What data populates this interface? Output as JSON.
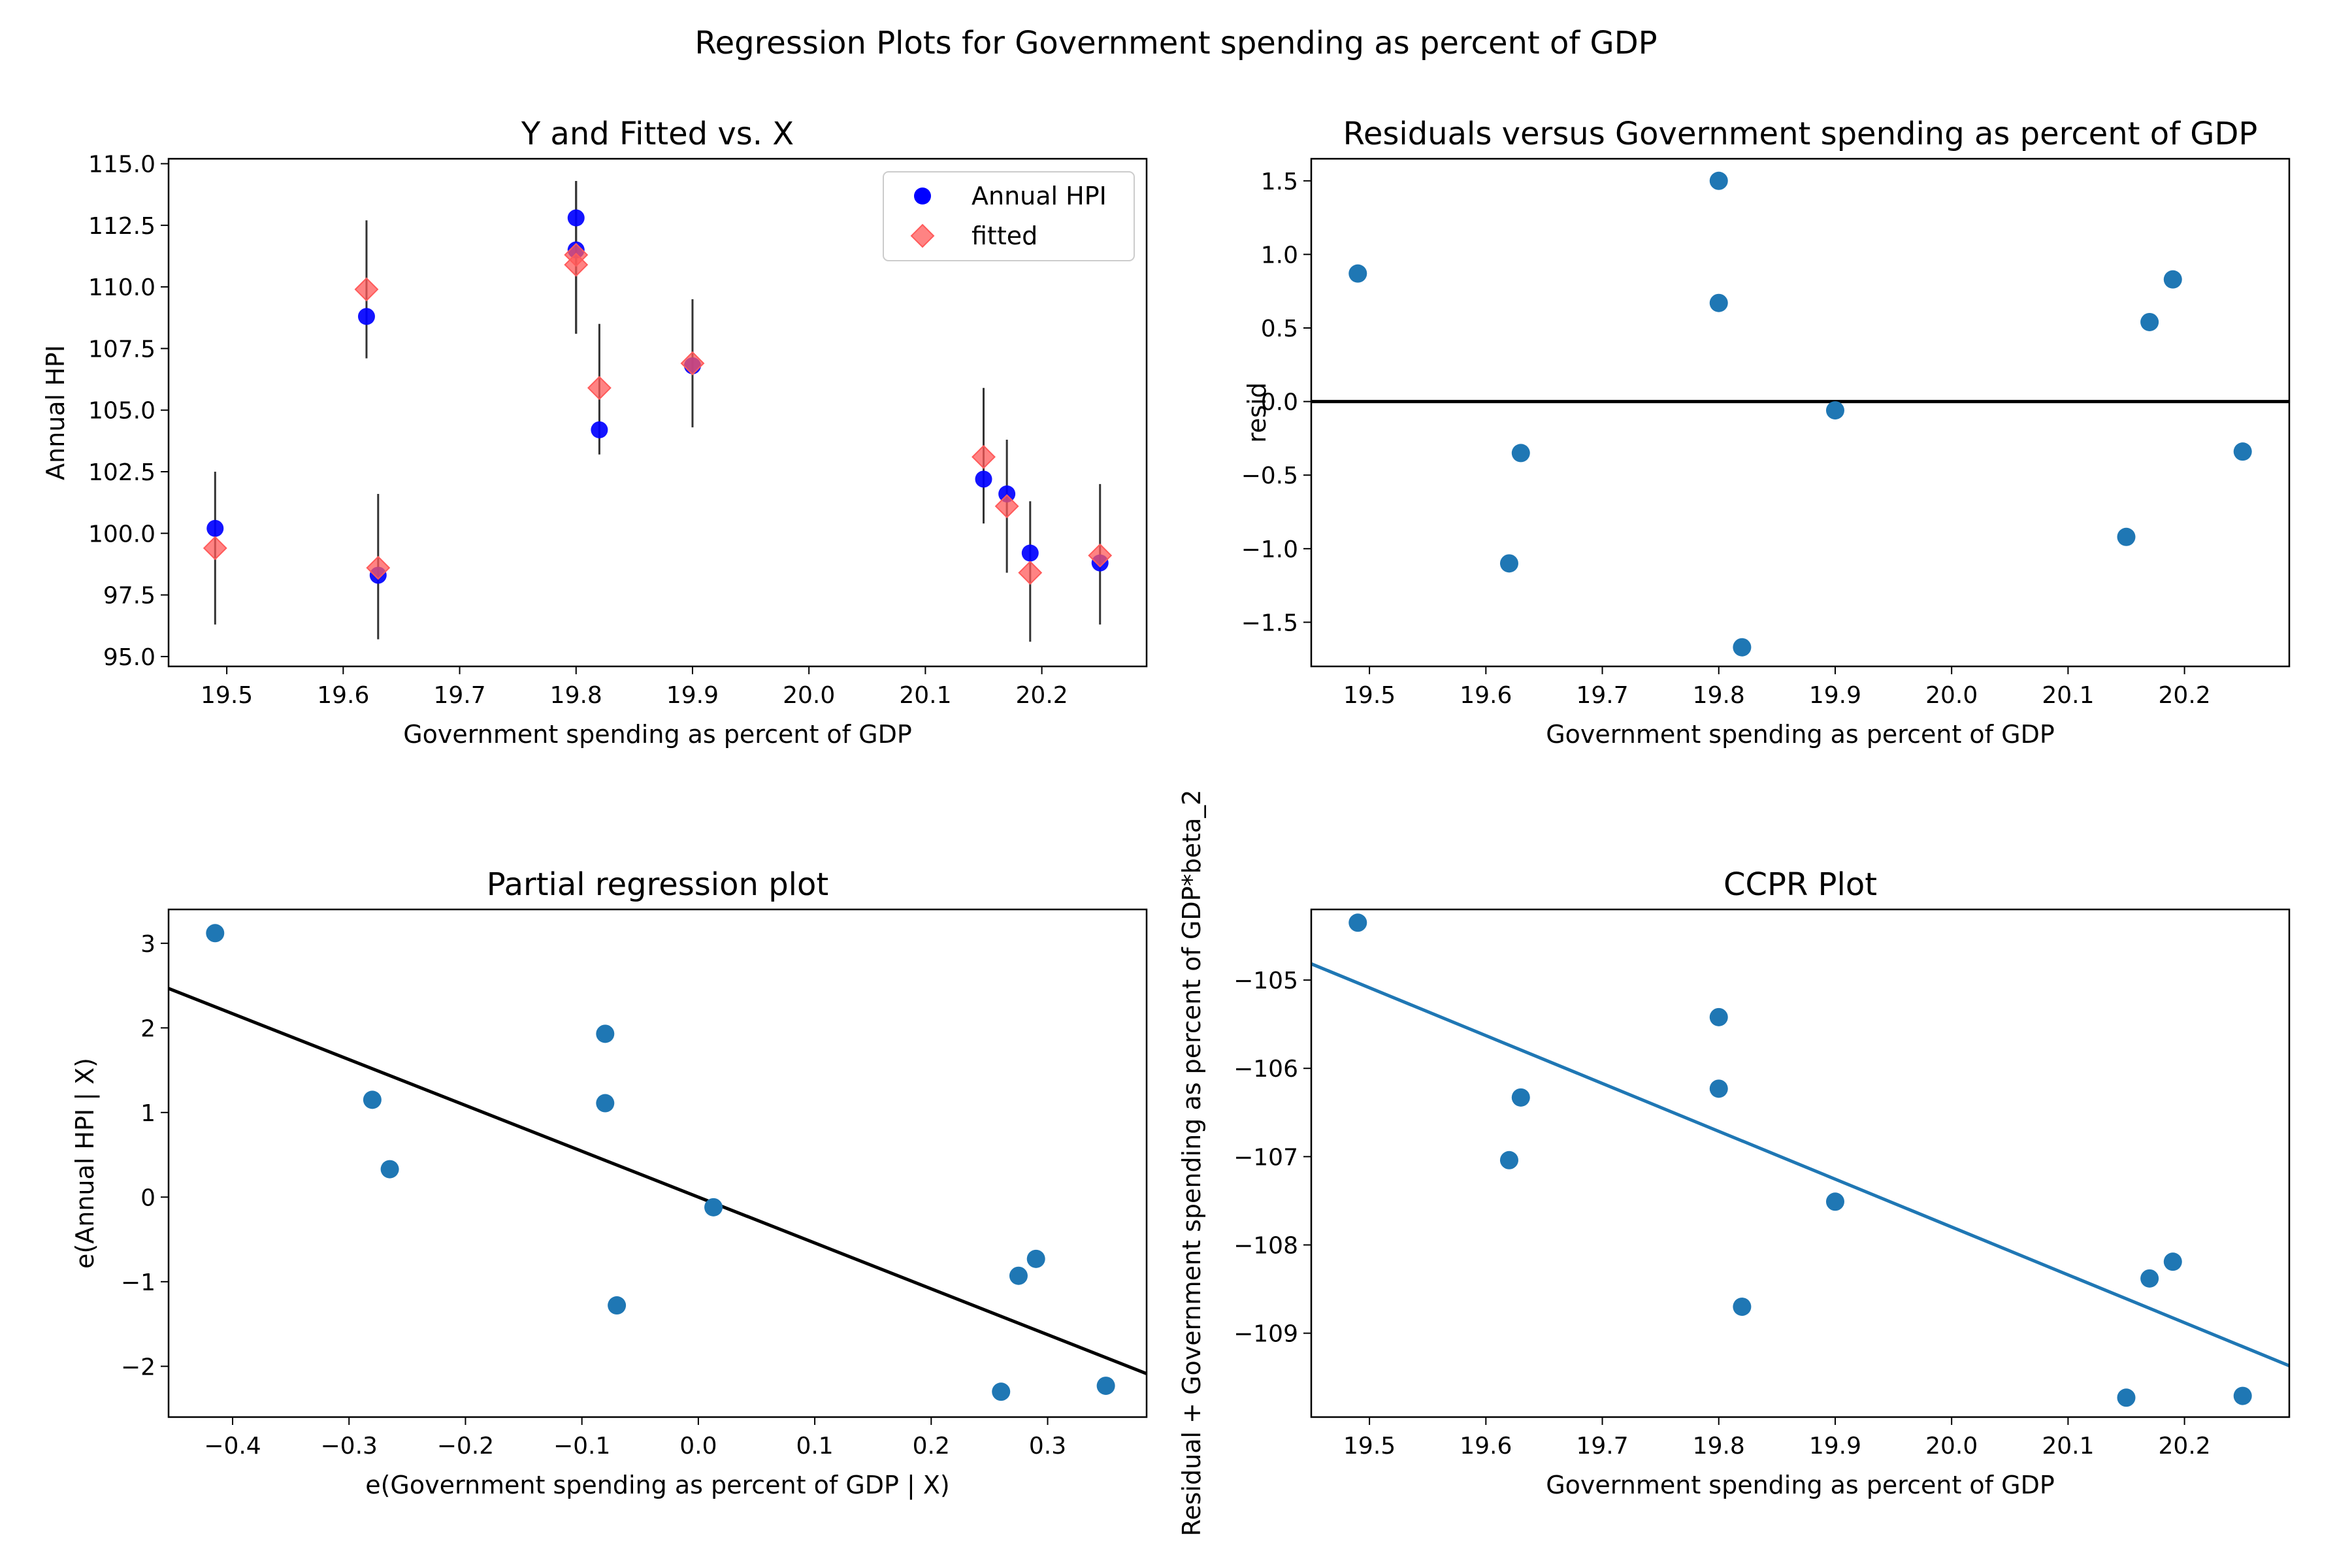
{
  "suptitle": "Regression Plots for Government spending as percent of GDP",
  "colors": {
    "observed": "#0000ff",
    "fitted": "#ff5a5a",
    "points": "#1f77b4",
    "regline_black": "#000000",
    "regline_blue": "#1f77b4",
    "errorbar": "#333333"
  },
  "chart_data": [
    {
      "type": "scatter",
      "title": "Y and Fitted vs. X",
      "xlabel": "Government spending as percent of GDP",
      "ylabel": "Annual HPI",
      "xlim": [
        19.45,
        20.29
      ],
      "ylim": [
        94.6,
        115.2
      ],
      "xticks": [
        19.5,
        19.6,
        19.7,
        19.8,
        19.9,
        20.0,
        20.1,
        20.2
      ],
      "xtick_labels": [
        "19.5",
        "19.6",
        "19.7",
        "19.8",
        "19.9",
        "20.0",
        "20.1",
        "20.2"
      ],
      "yticks": [
        95.0,
        97.5,
        100.0,
        102.5,
        105.0,
        107.5,
        110.0,
        112.5,
        115.0
      ],
      "ytick_labels": [
        "95.0",
        "97.5",
        "100.0",
        "102.5",
        "105.0",
        "107.5",
        "110.0",
        "112.5",
        "115.0"
      ],
      "legend": {
        "position": "upper right",
        "entries": [
          "Annual HPI",
          "fitted"
        ]
      },
      "series": [
        {
          "name": "Annual HPI",
          "marker": "circle",
          "x": [
            19.49,
            19.62,
            19.63,
            19.8,
            19.8,
            19.82,
            19.9,
            20.15,
            20.17,
            20.19,
            20.25
          ],
          "y": [
            100.2,
            108.8,
            98.3,
            112.8,
            111.5,
            104.2,
            106.8,
            102.2,
            101.6,
            99.2,
            98.8
          ]
        },
        {
          "name": "fitted",
          "marker": "diamond",
          "x": [
            19.49,
            19.62,
            19.63,
            19.8,
            19.8,
            19.82,
            19.9,
            20.15,
            20.17,
            20.19,
            20.25
          ],
          "y": [
            99.4,
            109.9,
            98.6,
            111.3,
            110.9,
            105.9,
            106.9,
            103.1,
            101.1,
            98.4,
            99.1
          ],
          "err_lo": [
            96.3,
            107.1,
            95.7,
            108.1,
            108.1,
            103.2,
            104.3,
            100.4,
            98.4,
            95.6,
            96.3
          ],
          "err_hi": [
            102.5,
            112.7,
            101.6,
            114.3,
            114.3,
            108.5,
            109.5,
            105.9,
            103.8,
            101.3,
            102.0
          ]
        }
      ]
    },
    {
      "type": "scatter",
      "title": "Residuals versus Government spending as percent of GDP",
      "xlabel": "Government spending as percent of GDP",
      "ylabel": "resid",
      "xlim": [
        19.45,
        20.29
      ],
      "ylim": [
        -1.8,
        1.65
      ],
      "xticks": [
        19.5,
        19.6,
        19.7,
        19.8,
        19.9,
        20.0,
        20.1,
        20.2
      ],
      "xtick_labels": [
        "19.5",
        "19.6",
        "19.7",
        "19.8",
        "19.9",
        "20.0",
        "20.1",
        "20.2"
      ],
      "yticks": [
        -1.5,
        -1.0,
        -0.5,
        0.0,
        0.5,
        1.0,
        1.5
      ],
      "ytick_labels": [
        "−1.5",
        "−1.0",
        "−0.5",
        "0.0",
        "0.5",
        "1.0",
        "1.5"
      ],
      "hline": 0.0,
      "series": [
        {
          "x": [
            19.49,
            19.62,
            19.63,
            19.8,
            19.8,
            19.82,
            19.9,
            20.15,
            20.17,
            20.19,
            20.25
          ],
          "y": [
            0.87,
            -1.1,
            -0.35,
            1.5,
            0.67,
            -1.67,
            -0.06,
            -0.92,
            0.54,
            0.83,
            -0.34
          ]
        }
      ]
    },
    {
      "type": "scatter",
      "title": "Partial regression plot",
      "xlabel": "e(Government spending as percent of GDP | X)",
      "ylabel": "e(Annual HPI | X)",
      "xlim": [
        -0.455,
        0.385
      ],
      "ylim": [
        -2.6,
        3.4
      ],
      "xticks": [
        -0.4,
        -0.3,
        -0.2,
        -0.1,
        0.0,
        0.1,
        0.2,
        0.3
      ],
      "xtick_labels": [
        "−0.4",
        "−0.3",
        "−0.2",
        "−0.1",
        "0.0",
        "0.1",
        "0.2",
        "0.3"
      ],
      "yticks": [
        -2,
        -1,
        0,
        1,
        2,
        3
      ],
      "ytick_labels": [
        "−2",
        "−1",
        "0",
        "1",
        "2",
        "3"
      ],
      "fit_line": {
        "slope": -5.42,
        "intercept": 0.0
      },
      "series": [
        {
          "x": [
            -0.415,
            -0.28,
            -0.265,
            -0.08,
            -0.08,
            -0.07,
            0.013,
            0.26,
            0.275,
            0.29,
            0.35
          ],
          "y": [
            3.12,
            1.15,
            0.33,
            1.93,
            1.11,
            -1.28,
            -0.12,
            -2.3,
            -0.93,
            -0.73,
            -2.23
          ]
        }
      ]
    },
    {
      "type": "scatter",
      "title": "CCPR Plot",
      "xlabel": "Government spending as percent of GDP",
      "ylabel": "Residual + Government spending as percent of GDP*beta_2",
      "xlim": [
        19.45,
        20.29
      ],
      "ylim": [
        -109.95,
        -104.2
      ],
      "xticks": [
        19.5,
        19.6,
        19.7,
        19.8,
        19.9,
        20.0,
        20.1,
        20.2
      ],
      "xtick_labels": [
        "19.5",
        "19.6",
        "19.7",
        "19.8",
        "19.9",
        "20.0",
        "20.1",
        "20.2"
      ],
      "yticks": [
        -109,
        -108,
        -107,
        -106,
        -105
      ],
      "ytick_labels": [
        "−109",
        "−108",
        "−107",
        "−106",
        "−105"
      ],
      "fit_line": {
        "slope": -5.42,
        "intercept": 0.603
      },
      "series": [
        {
          "x": [
            19.49,
            19.62,
            19.63,
            19.8,
            19.8,
            19.82,
            19.9,
            20.15,
            20.17,
            20.19,
            20.25
          ],
          "y": [
            -104.35,
            -107.04,
            -106.33,
            -105.42,
            -106.23,
            -108.7,
            -107.51,
            -109.73,
            -108.38,
            -108.19,
            -109.71
          ]
        }
      ]
    }
  ]
}
